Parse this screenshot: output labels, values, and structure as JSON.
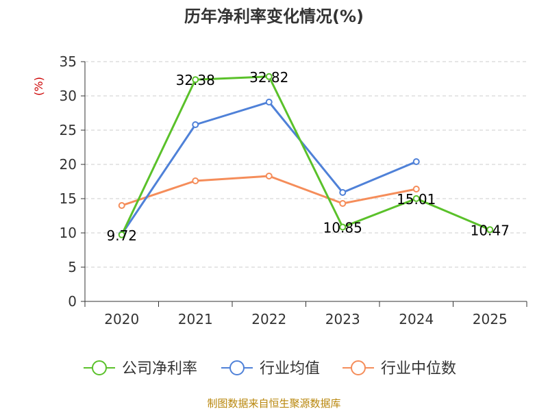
{
  "chart_data": {
    "type": "line",
    "title": "历年净利率变化情况(%)",
    "ylabel": "(%)",
    "xlabel": "",
    "categories": [
      "2020",
      "2021",
      "2022",
      "2023",
      "2024",
      "2025"
    ],
    "ylim": [
      0,
      35
    ],
    "yticks": [
      0,
      5,
      10,
      15,
      20,
      25,
      30,
      35
    ],
    "grid": true,
    "legend_position": "bottom",
    "series": [
      {
        "name": "公司净利率",
        "color": "#5ac12a",
        "values": [
          9.72,
          32.38,
          32.82,
          10.85,
          15.01,
          10.47
        ],
        "labels": [
          "9.72",
          "32.38",
          "32.82",
          "10.85",
          "15.01",
          "10.47"
        ]
      },
      {
        "name": "行业均值",
        "color": "#4f81d8",
        "values": [
          9.8,
          25.8,
          29.1,
          15.9,
          20.4,
          null
        ]
      },
      {
        "name": "行业中位数",
        "color": "#f58d5a",
        "values": [
          14.0,
          17.6,
          18.3,
          14.3,
          16.4,
          null
        ]
      }
    ]
  },
  "source_text": "制图数据来自恒生聚源数据库"
}
